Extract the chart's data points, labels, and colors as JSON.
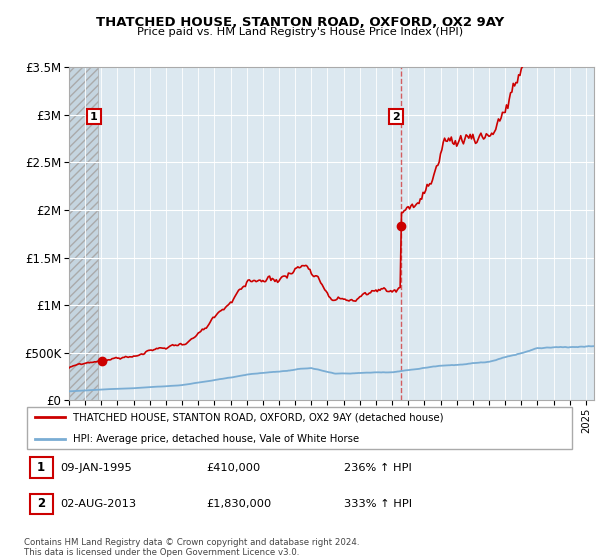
{
  "title": "THATCHED HOUSE, STANTON ROAD, OXFORD, OX2 9AY",
  "subtitle": "Price paid vs. HM Land Registry's House Price Index (HPI)",
  "ylim": [
    0,
    3500000
  ],
  "yticks": [
    0,
    500000,
    1000000,
    1500000,
    2000000,
    2500000,
    3000000,
    3500000
  ],
  "ytick_labels": [
    "£0",
    "£500K",
    "£1M",
    "£1.5M",
    "£2M",
    "£2.5M",
    "£3M",
    "£3.5M"
  ],
  "xmin": 1993.0,
  "xmax": 2025.5,
  "sale1_date": 1995.03,
  "sale1_price": 410000,
  "sale2_date": 2013.58,
  "sale2_price": 1830000,
  "house_color": "#cc0000",
  "hpi_color": "#7aadd4",
  "hatch_xend": 1994.8,
  "legend_house": "THATCHED HOUSE, STANTON ROAD, OXFORD, OX2 9AY (detached house)",
  "legend_hpi": "HPI: Average price, detached house, Vale of White Horse",
  "note1_date": "09-JAN-1995",
  "note1_price": "£410,000",
  "note1_hpi": "236% ↑ HPI",
  "note2_date": "02-AUG-2013",
  "note2_price": "£1,830,000",
  "note2_hpi": "333% ↑ HPI",
  "copyright": "Contains HM Land Registry data © Crown copyright and database right 2024.\nThis data is licensed under the Open Government Licence v3.0.",
  "bg_plot_color": "#dce8f0",
  "bg_hatch_color": "#c5d5e0"
}
